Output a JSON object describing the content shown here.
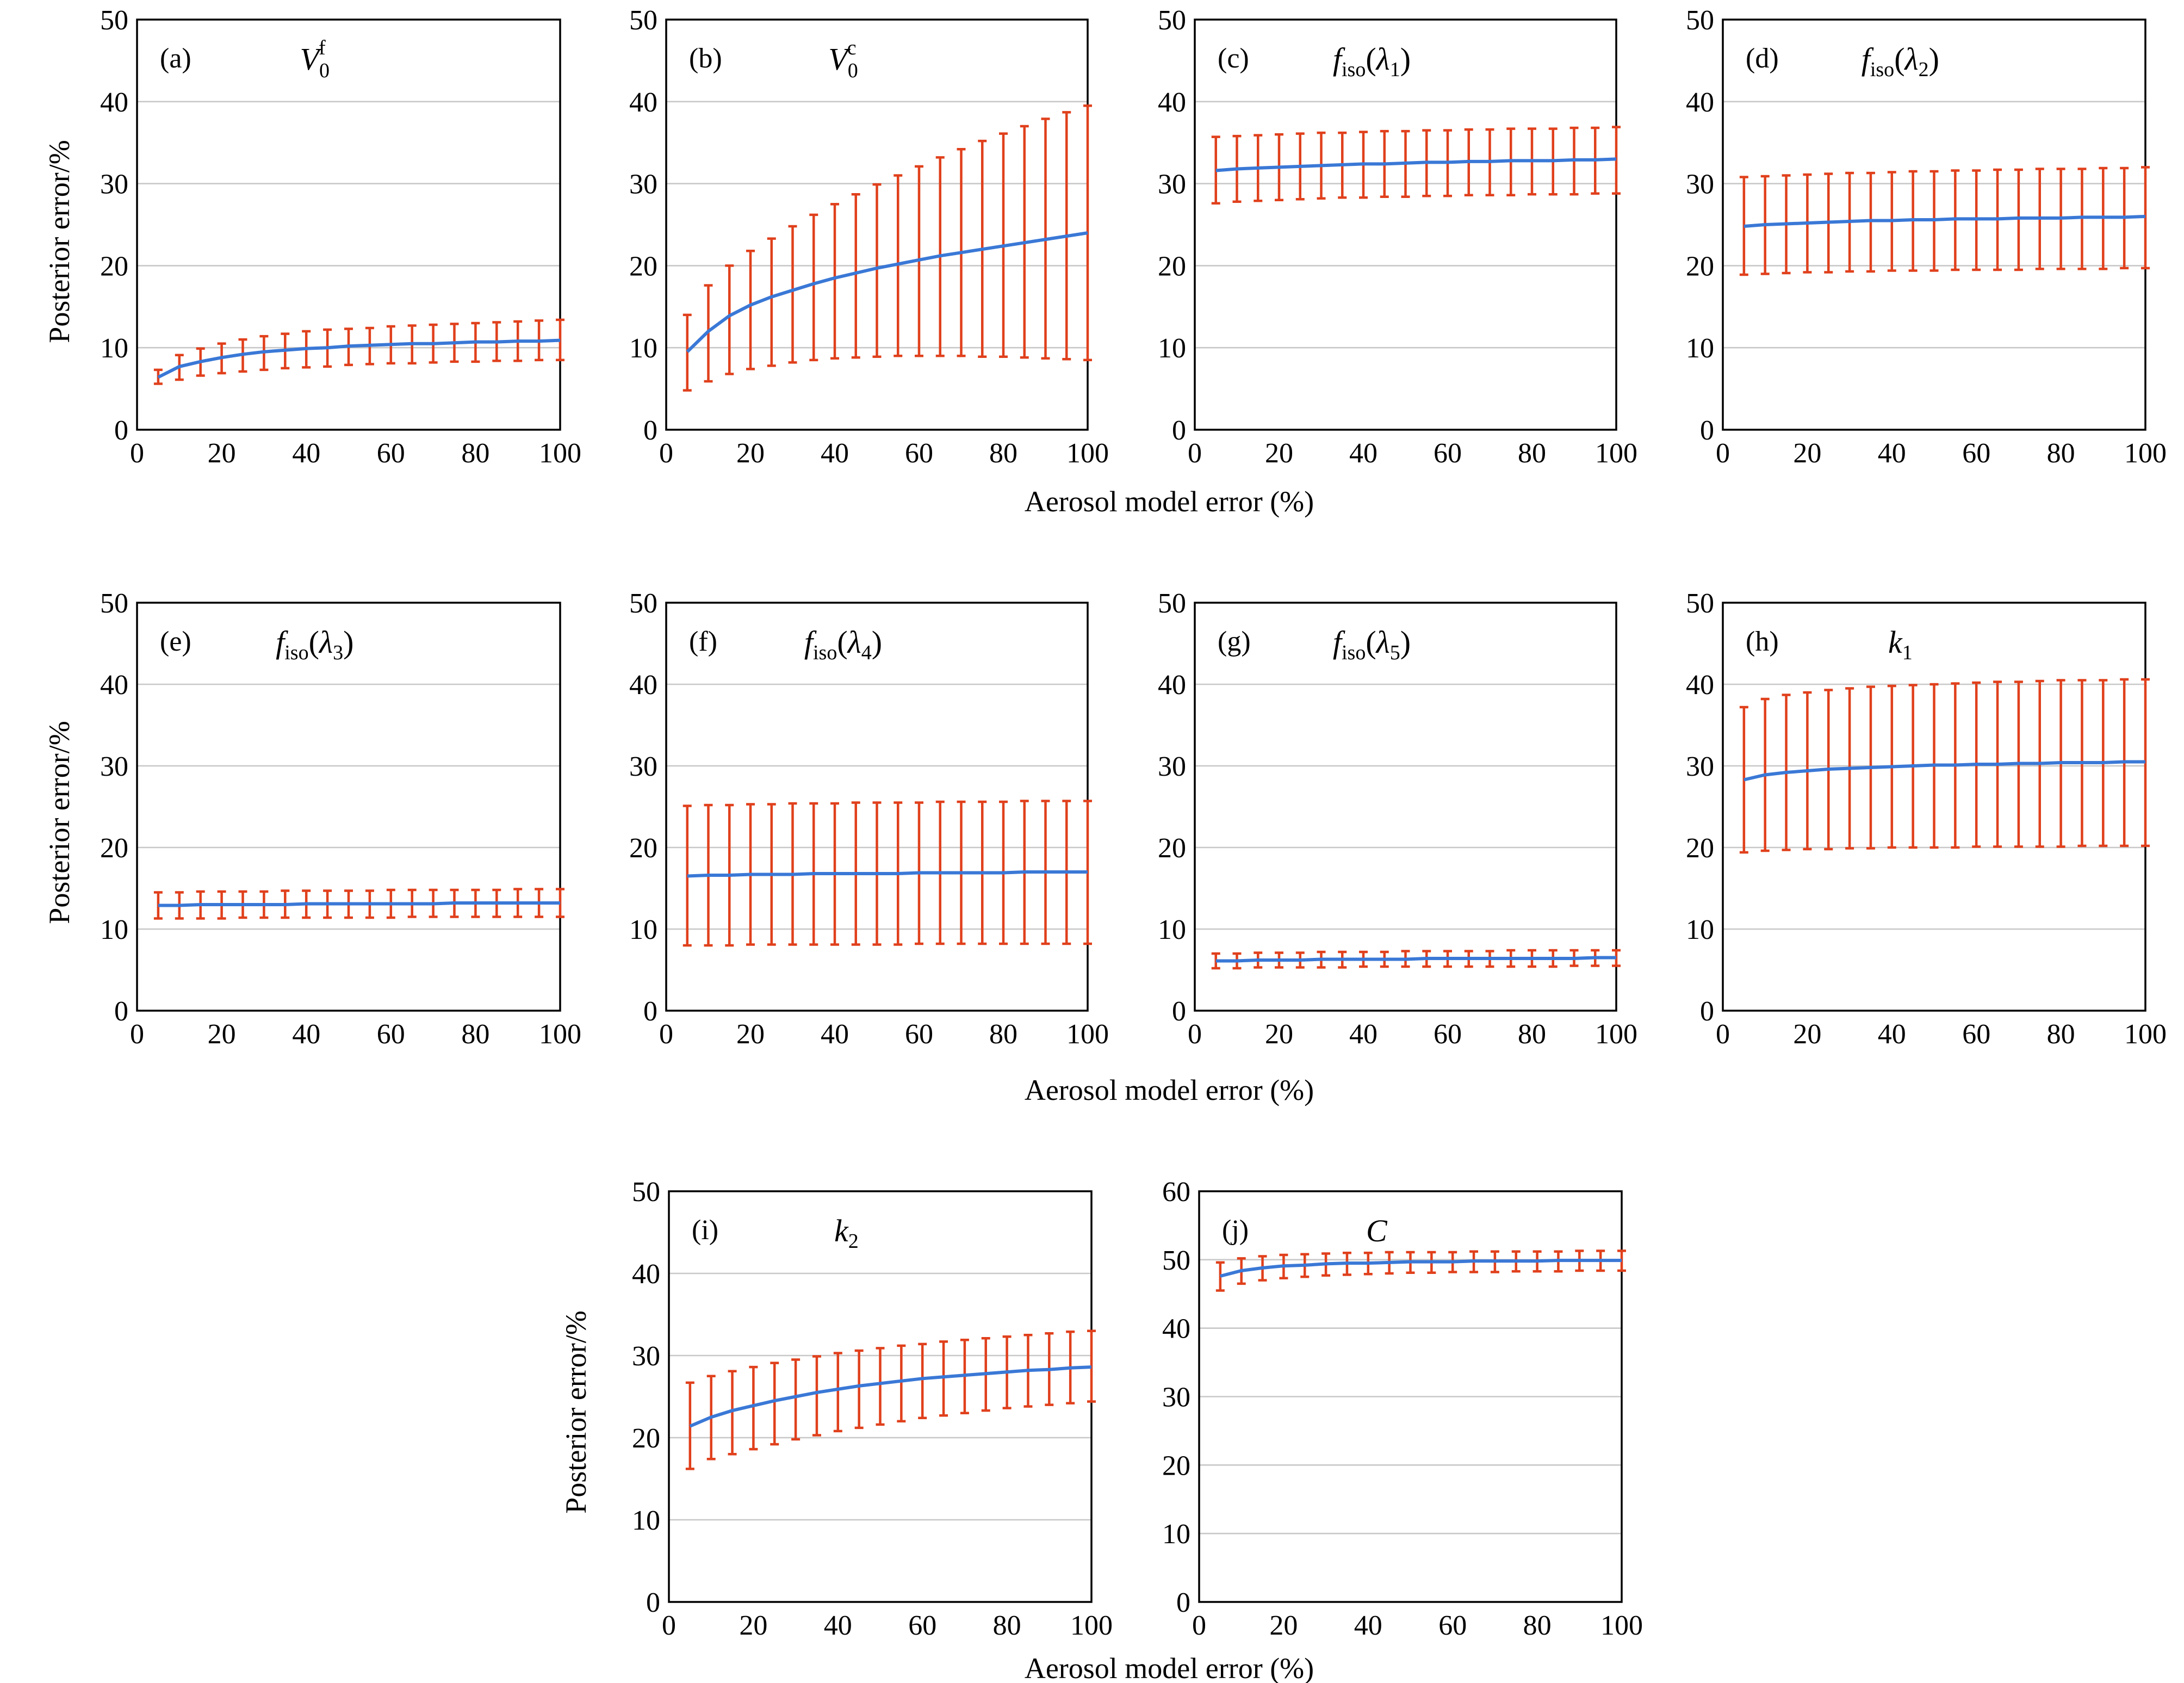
{
  "figure": {
    "shared_xlabel": "Aerosol model error (%)",
    "shared_ylabel": "Posterior error/%"
  },
  "colors": {
    "mean_line": "#3a78d6",
    "error_bars": "#e0401c",
    "grid": "#c8c8c8"
  },
  "chart_data": [
    {
      "panel": "(a)",
      "title_main": "V",
      "title_sub": "0",
      "title_sup": "f",
      "type": "line",
      "x_tick_labels": [
        "0",
        "20",
        "40",
        "60",
        "80",
        "100"
      ],
      "y_tick_labels": [
        "0",
        "10",
        "20",
        "30",
        "40",
        "50"
      ],
      "xlim": [
        0,
        100
      ],
      "ylim": [
        0,
        50
      ],
      "grid": "horizontal",
      "x": [
        5,
        10,
        15,
        20,
        25,
        30,
        35,
        40,
        45,
        50,
        55,
        60,
        65,
        70,
        75,
        80,
        85,
        90,
        95,
        100
      ],
      "mean": [
        6.4,
        7.7,
        8.3,
        8.8,
        9.2,
        9.5,
        9.7,
        9.9,
        10.0,
        10.2,
        10.3,
        10.4,
        10.5,
        10.5,
        10.6,
        10.7,
        10.7,
        10.8,
        10.8,
        10.9
      ],
      "lower": [
        5.6,
        6.1,
        6.6,
        6.9,
        7.1,
        7.3,
        7.5,
        7.6,
        7.7,
        7.9,
        8.0,
        8.1,
        8.1,
        8.2,
        8.3,
        8.3,
        8.4,
        8.4,
        8.5,
        8.5
      ],
      "upper": [
        7.3,
        9.1,
        9.9,
        10.5,
        11.0,
        11.4,
        11.7,
        12.0,
        12.2,
        12.3,
        12.4,
        12.6,
        12.7,
        12.8,
        12.9,
        13.0,
        13.1,
        13.2,
        13.3,
        13.4
      ]
    },
    {
      "panel": "(b)",
      "title_main": "V",
      "title_sub": "0",
      "title_sup": "c",
      "type": "line",
      "x_tick_labels": [
        "0",
        "20",
        "40",
        "60",
        "80",
        "100"
      ],
      "y_tick_labels": [
        "0",
        "10",
        "20",
        "30",
        "40",
        "50"
      ],
      "xlim": [
        0,
        100
      ],
      "ylim": [
        0,
        50
      ],
      "grid": "horizontal",
      "x": [
        5,
        10,
        15,
        20,
        25,
        30,
        35,
        40,
        45,
        50,
        55,
        60,
        65,
        70,
        75,
        80,
        85,
        90,
        95,
        100
      ],
      "mean": [
        9.5,
        12.0,
        13.9,
        15.2,
        16.2,
        17.0,
        17.8,
        18.5,
        19.1,
        19.7,
        20.2,
        20.7,
        21.2,
        21.6,
        22.0,
        22.4,
        22.8,
        23.2,
        23.6,
        24.0
      ],
      "lower": [
        4.8,
        5.9,
        6.8,
        7.4,
        7.8,
        8.2,
        8.5,
        8.7,
        8.8,
        8.9,
        9.0,
        9.0,
        9.0,
        9.0,
        8.9,
        8.9,
        8.8,
        8.7,
        8.6,
        8.5
      ],
      "upper": [
        14.0,
        17.6,
        20.0,
        21.8,
        23.3,
        24.8,
        26.2,
        27.5,
        28.7,
        29.9,
        31.0,
        32.1,
        33.2,
        34.2,
        35.2,
        36.1,
        37.0,
        37.9,
        38.7,
        39.5
      ]
    },
    {
      "panel": "(c)",
      "title_main": "f",
      "title_sub": "iso",
      "title_arg": "λ",
      "title_arg_sub": "1",
      "type": "line",
      "x_tick_labels": [
        "0",
        "20",
        "40",
        "60",
        "80",
        "100"
      ],
      "y_tick_labels": [
        "0",
        "10",
        "20",
        "30",
        "40",
        "50"
      ],
      "xlim": [
        0,
        100
      ],
      "ylim": [
        0,
        50
      ],
      "grid": "horizontal",
      "x": [
        5,
        10,
        15,
        20,
        25,
        30,
        35,
        40,
        45,
        50,
        55,
        60,
        65,
        70,
        75,
        80,
        85,
        90,
        95,
        100
      ],
      "mean": [
        31.6,
        31.8,
        31.9,
        32.0,
        32.1,
        32.2,
        32.3,
        32.4,
        32.4,
        32.5,
        32.6,
        32.6,
        32.7,
        32.7,
        32.8,
        32.8,
        32.8,
        32.9,
        32.9,
        33.0
      ],
      "lower": [
        27.6,
        27.8,
        27.9,
        28.0,
        28.1,
        28.2,
        28.3,
        28.3,
        28.4,
        28.4,
        28.5,
        28.5,
        28.6,
        28.6,
        28.6,
        28.7,
        28.7,
        28.7,
        28.8,
        28.8
      ],
      "upper": [
        35.7,
        35.8,
        35.9,
        36.0,
        36.1,
        36.2,
        36.2,
        36.3,
        36.4,
        36.4,
        36.5,
        36.5,
        36.6,
        36.6,
        36.7,
        36.7,
        36.7,
        36.8,
        36.8,
        36.9
      ]
    },
    {
      "panel": "(d)",
      "title_main": "f",
      "title_sub": "iso",
      "title_arg": "λ",
      "title_arg_sub": "2",
      "type": "line",
      "x_tick_labels": [
        "0",
        "20",
        "40",
        "60",
        "80",
        "100"
      ],
      "y_tick_labels": [
        "0",
        "10",
        "20",
        "30",
        "40",
        "50"
      ],
      "xlim": [
        0,
        100
      ],
      "ylim": [
        0,
        50
      ],
      "grid": "horizontal",
      "x": [
        5,
        10,
        15,
        20,
        25,
        30,
        35,
        40,
        45,
        50,
        55,
        60,
        65,
        70,
        75,
        80,
        85,
        90,
        95,
        100
      ],
      "mean": [
        24.8,
        25.0,
        25.1,
        25.2,
        25.3,
        25.4,
        25.5,
        25.5,
        25.6,
        25.6,
        25.7,
        25.7,
        25.7,
        25.8,
        25.8,
        25.8,
        25.9,
        25.9,
        25.9,
        26.0
      ],
      "lower": [
        18.9,
        19.0,
        19.1,
        19.2,
        19.2,
        19.3,
        19.3,
        19.4,
        19.4,
        19.4,
        19.5,
        19.5,
        19.5,
        19.5,
        19.6,
        19.6,
        19.6,
        19.6,
        19.7,
        19.7
      ],
      "upper": [
        30.8,
        30.9,
        31.0,
        31.1,
        31.2,
        31.3,
        31.3,
        31.4,
        31.5,
        31.5,
        31.6,
        31.6,
        31.7,
        31.7,
        31.8,
        31.8,
        31.8,
        31.9,
        31.9,
        32.0
      ]
    },
    {
      "panel": "(e)",
      "title_main": "f",
      "title_sub": "iso",
      "title_arg": "λ",
      "title_arg_sub": "3",
      "type": "line",
      "x_tick_labels": [
        "0",
        "20",
        "40",
        "60",
        "80",
        "100"
      ],
      "y_tick_labels": [
        "0",
        "10",
        "20",
        "30",
        "40",
        "50"
      ],
      "xlim": [
        0,
        100
      ],
      "ylim": [
        0,
        50
      ],
      "grid": "horizontal",
      "x": [
        5,
        10,
        15,
        20,
        25,
        30,
        35,
        40,
        45,
        50,
        55,
        60,
        65,
        70,
        75,
        80,
        85,
        90,
        95,
        100
      ],
      "mean": [
        12.9,
        12.9,
        13.0,
        13.0,
        13.0,
        13.0,
        13.0,
        13.1,
        13.1,
        13.1,
        13.1,
        13.1,
        13.1,
        13.1,
        13.2,
        13.2,
        13.2,
        13.2,
        13.2,
        13.2
      ],
      "lower": [
        11.3,
        11.3,
        11.3,
        11.3,
        11.4,
        11.4,
        11.4,
        11.4,
        11.4,
        11.4,
        11.4,
        11.4,
        11.5,
        11.5,
        11.5,
        11.5,
        11.5,
        11.5,
        11.5,
        11.5
      ],
      "upper": [
        14.5,
        14.5,
        14.6,
        14.6,
        14.6,
        14.6,
        14.7,
        14.7,
        14.7,
        14.7,
        14.7,
        14.8,
        14.8,
        14.8,
        14.8,
        14.8,
        14.8,
        14.9,
        14.9,
        14.9
      ]
    },
    {
      "panel": "(f)",
      "title_main": "f",
      "title_sub": "iso",
      "title_arg": "λ",
      "title_arg_sub": "4",
      "type": "line",
      "x_tick_labels": [
        "0",
        "20",
        "40",
        "60",
        "80",
        "100"
      ],
      "y_tick_labels": [
        "0",
        "10",
        "20",
        "30",
        "40",
        "50"
      ],
      "xlim": [
        0,
        100
      ],
      "ylim": [
        0,
        50
      ],
      "grid": "horizontal",
      "x": [
        5,
        10,
        15,
        20,
        25,
        30,
        35,
        40,
        45,
        50,
        55,
        60,
        65,
        70,
        75,
        80,
        85,
        90,
        95,
        100
      ],
      "mean": [
        16.5,
        16.6,
        16.6,
        16.7,
        16.7,
        16.7,
        16.8,
        16.8,
        16.8,
        16.8,
        16.8,
        16.9,
        16.9,
        16.9,
        16.9,
        16.9,
        17.0,
        17.0,
        17.0,
        17.0
      ],
      "lower": [
        8.0,
        8.0,
        8.0,
        8.1,
        8.1,
        8.1,
        8.1,
        8.1,
        8.1,
        8.1,
        8.1,
        8.2,
        8.2,
        8.2,
        8.2,
        8.2,
        8.2,
        8.2,
        8.2,
        8.2
      ],
      "upper": [
        25.1,
        25.2,
        25.2,
        25.3,
        25.3,
        25.4,
        25.4,
        25.4,
        25.5,
        25.5,
        25.5,
        25.5,
        25.6,
        25.6,
        25.6,
        25.6,
        25.7,
        25.7,
        25.7,
        25.7
      ]
    },
    {
      "panel": "(g)",
      "title_main": "f",
      "title_sub": "iso",
      "title_arg": "λ",
      "title_arg_sub": "5",
      "type": "line",
      "x_tick_labels": [
        "0",
        "20",
        "40",
        "60",
        "80",
        "100"
      ],
      "y_tick_labels": [
        "0",
        "10",
        "20",
        "30",
        "40",
        "50"
      ],
      "xlim": [
        0,
        100
      ],
      "ylim": [
        0,
        50
      ],
      "grid": "horizontal",
      "x": [
        5,
        10,
        15,
        20,
        25,
        30,
        35,
        40,
        45,
        50,
        55,
        60,
        65,
        70,
        75,
        80,
        85,
        90,
        95,
        100
      ],
      "mean": [
        6.1,
        6.1,
        6.2,
        6.2,
        6.2,
        6.3,
        6.3,
        6.3,
        6.3,
        6.3,
        6.4,
        6.4,
        6.4,
        6.4,
        6.4,
        6.4,
        6.4,
        6.4,
        6.5,
        6.5
      ],
      "lower": [
        5.2,
        5.2,
        5.3,
        5.3,
        5.3,
        5.3,
        5.3,
        5.4,
        5.4,
        5.4,
        5.4,
        5.4,
        5.4,
        5.4,
        5.4,
        5.4,
        5.4,
        5.5,
        5.5,
        5.5
      ],
      "upper": [
        7.0,
        7.0,
        7.1,
        7.1,
        7.1,
        7.2,
        7.2,
        7.2,
        7.2,
        7.3,
        7.3,
        7.3,
        7.3,
        7.3,
        7.4,
        7.4,
        7.4,
        7.4,
        7.4,
        7.4
      ]
    },
    {
      "panel": "(h)",
      "title_main": "k",
      "title_sub": "1",
      "type": "line",
      "x_tick_labels": [
        "0",
        "20",
        "40",
        "60",
        "80",
        "100"
      ],
      "y_tick_labels": [
        "0",
        "10",
        "20",
        "30",
        "40",
        "50"
      ],
      "xlim": [
        0,
        100
      ],
      "ylim": [
        0,
        50
      ],
      "grid": "horizontal",
      "x": [
        5,
        10,
        15,
        20,
        25,
        30,
        35,
        40,
        45,
        50,
        55,
        60,
        65,
        70,
        75,
        80,
        85,
        90,
        95,
        100
      ],
      "mean": [
        28.3,
        28.9,
        29.2,
        29.4,
        29.6,
        29.7,
        29.8,
        29.9,
        30.0,
        30.1,
        30.1,
        30.2,
        30.2,
        30.3,
        30.3,
        30.4,
        30.4,
        30.4,
        30.5,
        30.5
      ],
      "lower": [
        19.4,
        19.6,
        19.7,
        19.8,
        19.8,
        19.9,
        19.9,
        20.0,
        20.0,
        20.0,
        20.0,
        20.1,
        20.1,
        20.1,
        20.1,
        20.1,
        20.2,
        20.2,
        20.2,
        20.2
      ],
      "upper": [
        37.2,
        38.2,
        38.7,
        39.0,
        39.3,
        39.5,
        39.7,
        39.8,
        39.9,
        40.0,
        40.1,
        40.2,
        40.3,
        40.3,
        40.4,
        40.5,
        40.5,
        40.5,
        40.6,
        40.6
      ]
    },
    {
      "panel": "(i)",
      "title_main": "k",
      "title_sub": "2",
      "type": "line",
      "x_tick_labels": [
        "0",
        "20",
        "40",
        "60",
        "80",
        "100"
      ],
      "y_tick_labels": [
        "0",
        "10",
        "20",
        "30",
        "40",
        "50"
      ],
      "xlim": [
        0,
        100
      ],
      "ylim": [
        0,
        50
      ],
      "grid": "horizontal",
      "x": [
        5,
        10,
        15,
        20,
        25,
        30,
        35,
        40,
        45,
        50,
        55,
        60,
        65,
        70,
        75,
        80,
        85,
        90,
        95,
        100
      ],
      "mean": [
        21.4,
        22.5,
        23.3,
        23.9,
        24.5,
        25.0,
        25.5,
        25.9,
        26.3,
        26.6,
        26.9,
        27.2,
        27.4,
        27.6,
        27.8,
        28.0,
        28.2,
        28.3,
        28.5,
        28.6
      ],
      "lower": [
        16.2,
        17.4,
        18.0,
        18.6,
        19.2,
        19.8,
        20.3,
        20.8,
        21.2,
        21.6,
        22.0,
        22.4,
        22.7,
        23.0,
        23.3,
        23.6,
        23.8,
        24.0,
        24.2,
        24.4
      ],
      "upper": [
        26.7,
        27.5,
        28.1,
        28.6,
        29.1,
        29.5,
        29.9,
        30.3,
        30.6,
        30.9,
        31.2,
        31.4,
        31.7,
        31.9,
        32.1,
        32.3,
        32.5,
        32.7,
        32.9,
        33.0
      ]
    },
    {
      "panel": "(j)",
      "title_main": "C",
      "type": "line",
      "x_tick_labels": [
        "0",
        "20",
        "40",
        "60",
        "80",
        "100"
      ],
      "y_tick_labels": [
        "0",
        "10",
        "20",
        "30",
        "40",
        "50",
        "60"
      ],
      "xlim": [
        0,
        100
      ],
      "ylim": [
        0,
        60
      ],
      "grid": "horizontal",
      "x": [
        5,
        10,
        15,
        20,
        25,
        30,
        35,
        40,
        45,
        50,
        55,
        60,
        65,
        70,
        75,
        80,
        85,
        90,
        95,
        100
      ],
      "mean": [
        47.6,
        48.4,
        48.8,
        49.1,
        49.2,
        49.4,
        49.5,
        49.5,
        49.6,
        49.7,
        49.7,
        49.7,
        49.8,
        49.8,
        49.8,
        49.8,
        49.9,
        49.9,
        49.9,
        49.9
      ],
      "lower": [
        45.5,
        46.5,
        47.0,
        47.3,
        47.5,
        47.7,
        47.8,
        47.9,
        48.0,
        48.1,
        48.1,
        48.2,
        48.2,
        48.2,
        48.3,
        48.3,
        48.3,
        48.4,
        48.4,
        48.4
      ],
      "upper": [
        49.6,
        50.2,
        50.5,
        50.7,
        50.8,
        50.9,
        51.0,
        51.0,
        51.1,
        51.1,
        51.1,
        51.1,
        51.2,
        51.2,
        51.2,
        51.2,
        51.2,
        51.3,
        51.3,
        51.3
      ]
    }
  ]
}
